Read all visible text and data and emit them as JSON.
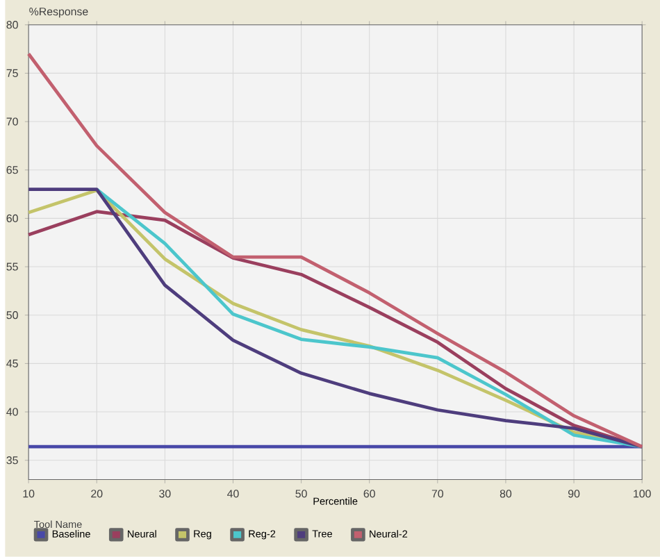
{
  "chart_data": {
    "type": "line",
    "xlabel": "Percentile",
    "ylabel": "%Response",
    "legend_title": "Tool Name",
    "x": [
      10,
      20,
      30,
      40,
      50,
      60,
      70,
      80,
      90,
      100
    ],
    "series": [
      {
        "name": "Baseline",
        "color": "#4848a8",
        "values": [
          36.4,
          36.4,
          36.4,
          36.4,
          36.4,
          36.4,
          36.4,
          36.4,
          36.4,
          36.4
        ]
      },
      {
        "name": "Neural",
        "color": "#9a3f5e",
        "values": [
          58.3,
          60.7,
          59.8,
          55.9,
          54.2,
          50.8,
          47.2,
          42.4,
          38.6,
          36.4
        ]
      },
      {
        "name": "Reg",
        "color": "#c4c46a",
        "values": [
          60.6,
          62.9,
          55.8,
          51.2,
          48.5,
          46.8,
          44.3,
          41.2,
          37.9,
          36.4
        ]
      },
      {
        "name": "Reg-2",
        "color": "#4cc6cc",
        "values": [
          null,
          63,
          57.4,
          50.1,
          47.5,
          46.7,
          45.6,
          41.8,
          37.6,
          36.4
        ]
      },
      {
        "name": "Tree",
        "color": "#4e3d7d",
        "values": [
          63,
          63,
          53.1,
          47.4,
          44,
          41.9,
          40.2,
          39.1,
          38.3,
          36.4
        ]
      },
      {
        "name": "Neural-2",
        "color": "#c2606f",
        "values": [
          77,
          67.5,
          60.6,
          56,
          56,
          52.3,
          48.1,
          44.1,
          39.6,
          36.4
        ]
      }
    ],
    "xlim": [
      10,
      100
    ],
    "ylim": [
      33,
      80
    ],
    "xticks": [
      10,
      20,
      30,
      40,
      50,
      60,
      70,
      80,
      90,
      100
    ],
    "yticks": [
      35,
      40,
      45,
      50,
      55,
      60,
      65,
      70,
      75,
      80
    ],
    "grid": true,
    "legend": "bottom",
    "line_style": "solid",
    "marker": "none"
  }
}
